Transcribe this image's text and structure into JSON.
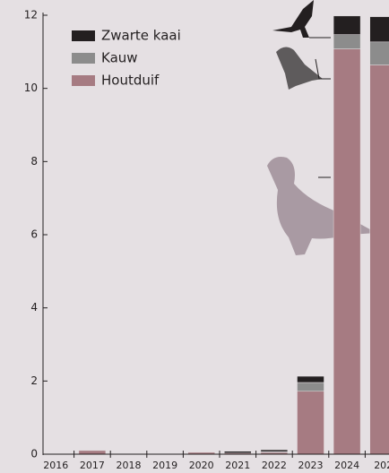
{
  "chart_data": {
    "type": "stacked-bar",
    "categories": [
      "2016",
      "2017",
      "2018",
      "2019",
      "2020",
      "2021",
      "2022",
      "2023",
      "2024",
      "202"
    ],
    "series": [
      {
        "name": "Houtduif",
        "color": "#a67b82",
        "values": [
          0,
          0.1,
          0,
          0,
          0.05,
          0.03,
          0.05,
          1.72,
          11.08,
          10.64
        ]
      },
      {
        "name": "Kauw",
        "color": "#8c8c8c",
        "values": [
          0,
          0,
          0,
          0,
          0,
          0,
          0.02,
          0.24,
          0.39,
          0.63
        ]
      },
      {
        "name": "Zwarte kaai",
        "color": "#231f20",
        "values": [
          0,
          0,
          0,
          0,
          0,
          0.05,
          0.05,
          0.17,
          0.51,
          0.69
        ]
      }
    ],
    "ylim": [
      0,
      12
    ],
    "yticks": [
      0,
      2,
      4,
      6,
      8,
      10,
      12
    ]
  }
}
